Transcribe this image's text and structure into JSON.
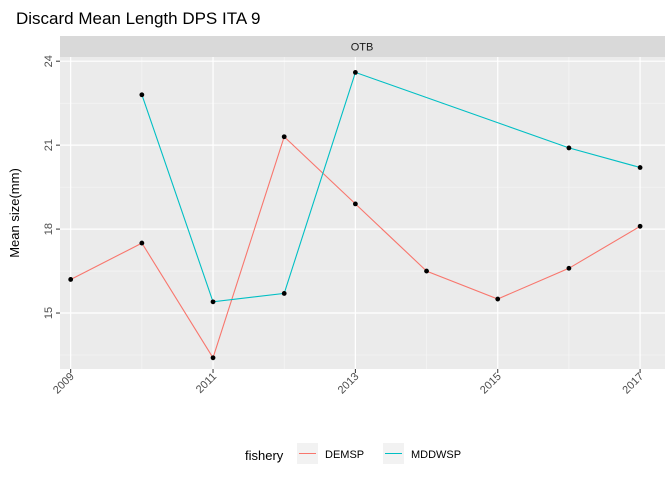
{
  "chart_data": {
    "type": "line",
    "title": "Discard Mean Length DPS ITA 9",
    "facet_label": "OTB",
    "xlabel": "",
    "ylabel": "Mean size(mm)",
    "x": [
      2009,
      2010,
      2011,
      2012,
      2013,
      2014,
      2015,
      2016,
      2017
    ],
    "x_tick_labels": [
      "2009",
      "2011",
      "2013",
      "2015",
      "2017"
    ],
    "x_tick_values": [
      2009,
      2011,
      2013,
      2015,
      2017
    ],
    "y_tick_labels": [
      "15",
      "18",
      "21",
      "24"
    ],
    "y_tick_values": [
      15,
      18,
      21,
      24
    ],
    "xlim": [
      2008.85,
      2017.35
    ],
    "ylim": [
      13.0,
      24.15
    ],
    "grid": true,
    "legend": {
      "title": "fishery",
      "position": "bottom"
    },
    "series": [
      {
        "name": "DEMSP",
        "color": "#F8766D",
        "points": [
          [
            2009,
            16.2
          ],
          [
            2010,
            17.5
          ],
          [
            2011,
            13.4
          ],
          [
            2012,
            21.3
          ],
          [
            2013,
            18.9
          ],
          [
            2014,
            16.5
          ],
          [
            2015,
            15.5
          ],
          [
            2016,
            16.6
          ],
          [
            2017,
            18.1
          ]
        ]
      },
      {
        "name": "MDDWSP",
        "color": "#00BFC4",
        "points": [
          [
            2010,
            22.8
          ],
          [
            2011,
            15.4
          ],
          [
            2012,
            15.7
          ],
          [
            2013,
            23.6
          ],
          [
            2016,
            20.9
          ],
          [
            2017,
            20.2
          ]
        ]
      }
    ]
  }
}
